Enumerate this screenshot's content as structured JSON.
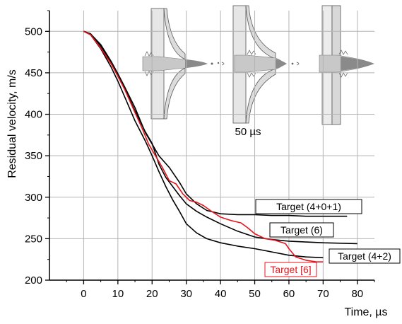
{
  "chart_data": {
    "type": "line",
    "xlabel": "Time, µs",
    "ylabel": "Residual velocity, m/s",
    "xlim": [
      -10,
      85
    ],
    "ylim": [
      200,
      525
    ],
    "x_ticks": [
      0,
      10,
      20,
      30,
      40,
      50,
      60,
      70,
      80
    ],
    "y_ticks": [
      200,
      250,
      300,
      350,
      400,
      450,
      500
    ],
    "grid": true,
    "inset_caption": "50 µs",
    "series": [
      {
        "name": "Target (4+0+1)",
        "color": "#000000",
        "x": [
          0,
          2,
          5,
          8,
          10,
          12,
          15,
          18,
          20,
          22,
          25,
          28,
          30,
          33,
          36,
          40,
          45,
          50,
          55,
          60,
          65,
          70,
          77
        ],
        "y": [
          500,
          497,
          484,
          464,
          449,
          433,
          408,
          378,
          364,
          350,
          336,
          318,
          304,
          292,
          284,
          280,
          279,
          279,
          278,
          278,
          277,
          277,
          277
        ]
      },
      {
        "name": "Target (6)",
        "color": "#000000",
        "x": [
          0,
          2,
          5,
          8,
          10,
          12,
          15,
          18,
          20,
          22,
          24,
          26,
          28,
          30,
          33,
          36,
          40,
          45,
          50,
          55,
          60,
          70,
          80
        ],
        "y": [
          500,
          497,
          482,
          462,
          447,
          431,
          404,
          379,
          365,
          340,
          324,
          313,
          302,
          292,
          283,
          276,
          268,
          259,
          252,
          249,
          247,
          245,
          244
        ]
      },
      {
        "name": "Target (4+2)",
        "color": "#000000",
        "x": [
          0,
          2,
          5,
          8,
          10,
          12,
          15,
          18,
          20,
          22,
          24,
          26,
          28,
          30,
          33,
          36,
          40,
          45,
          50,
          55,
          60,
          65,
          70
        ],
        "y": [
          500,
          496,
          479,
          457,
          440,
          421,
          392,
          368,
          350,
          331,
          313,
          297,
          283,
          268,
          257,
          250,
          245,
          241,
          238,
          234,
          230,
          228,
          227
        ]
      },
      {
        "name": "Target [6]",
        "color": "#e8121a",
        "x": [
          0,
          2,
          5,
          8,
          10,
          12,
          15,
          17,
          19,
          21,
          23,
          25,
          27,
          29,
          31,
          33,
          35,
          37,
          40,
          43,
          46,
          48,
          50,
          53,
          56,
          59,
          60,
          62,
          65,
          68,
          70
        ],
        "y": [
          500,
          496,
          480,
          461,
          446,
          430,
          402,
          384,
          364,
          350,
          336,
          320,
          316,
          304,
          296,
          294,
          290,
          284,
          276,
          272,
          269,
          263,
          256,
          250,
          248,
          244,
          238,
          228,
          224,
          222,
          222
        ]
      }
    ],
    "callouts": [
      {
        "text": "Target (4+0+1)",
        "series": 0,
        "color": "#000000",
        "boxed": true
      },
      {
        "text": "Target (6)",
        "series": 1,
        "color": "#000000",
        "boxed": true
      },
      {
        "text": "Target (4+2)",
        "series": 2,
        "color": "#000000",
        "boxed": true
      },
      {
        "text": "Target [6]",
        "series": 3,
        "color": "#e8121a",
        "boxed": true
      }
    ]
  }
}
